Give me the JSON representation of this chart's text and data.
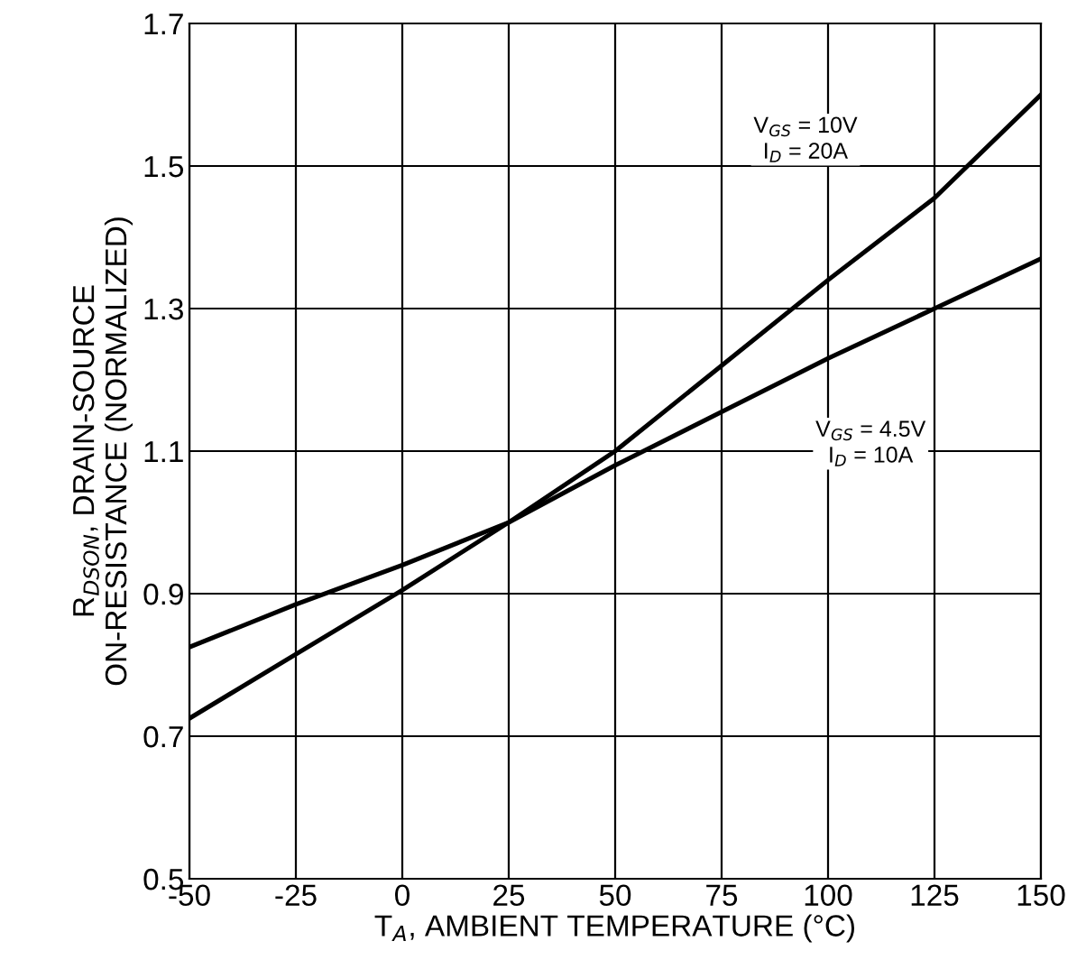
{
  "chart_data": {
    "type": "line",
    "xlabel": "T$_{A}$, AMBIENT TEMPERATURE (°C)",
    "ylabel": "R$_{DSON}$, DRAIN-SOURCE\nON-RESISTANCE (NORMALIZED)",
    "x": [
      -50,
      -25,
      0,
      25,
      50,
      75,
      100,
      125,
      150
    ],
    "series": [
      {
        "name": "V$_{GS}$ = 10V\nI$_{D}$ = 20A",
        "color": "#000000",
        "values": [
          0.725,
          0.815,
          0.905,
          1.0,
          1.1,
          1.22,
          1.34,
          1.455,
          1.6
        ]
      },
      {
        "name": "V$_{GS}$ = 4.5V\nI$_{D}$ = 10A",
        "color": "#000000",
        "values": [
          0.825,
          0.885,
          0.94,
          1.0,
          1.08,
          1.155,
          1.23,
          1.3,
          1.37
        ]
      }
    ],
    "xlim": [
      -50,
      150
    ],
    "xticks": [
      -50,
      -25,
      0,
      25,
      50,
      75,
      100,
      125,
      150
    ],
    "ylim": [
      0.5,
      1.7
    ],
    "yticks": [
      0.5,
      0.7,
      0.9,
      1.1,
      1.3,
      1.5,
      1.7
    ],
    "grid": true,
    "legend": false,
    "marker": "none",
    "line_style": "solid"
  }
}
